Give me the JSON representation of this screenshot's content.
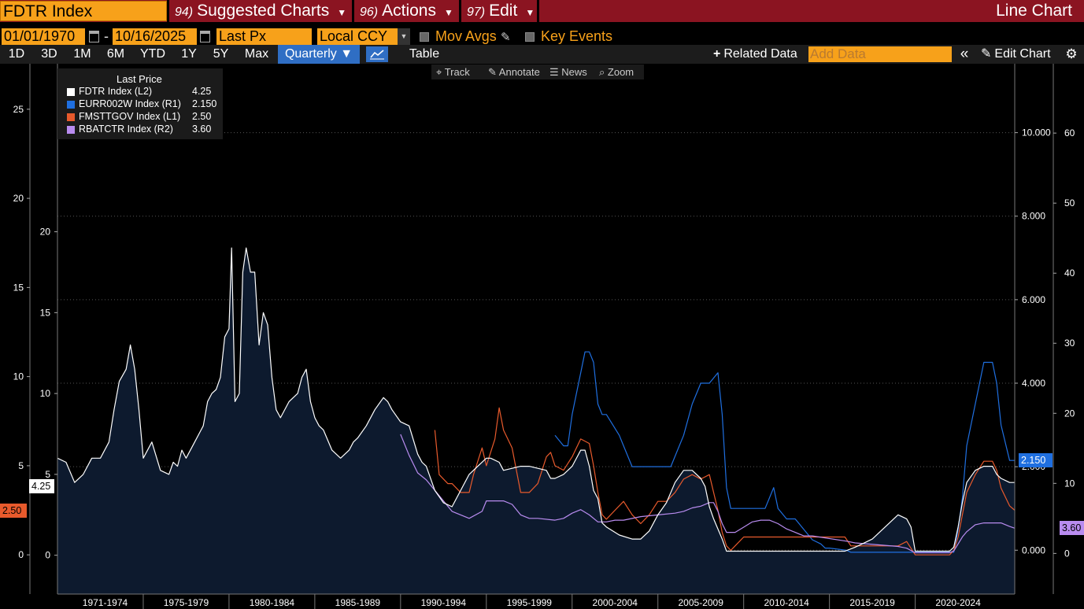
{
  "toolbar": {
    "ticker": "FDTR Index",
    "menus": [
      {
        "num": "94)",
        "label": "Suggested Charts"
      },
      {
        "num": "96)",
        "label": "Actions"
      },
      {
        "num": "97)",
        "label": "Edit"
      }
    ],
    "window_title": "Line Chart"
  },
  "settings": {
    "start_date": "01/01/1970",
    "end_date": "10/16/2025",
    "date_separator": "-",
    "price_field": "Last Px",
    "currency": "Local CCY",
    "mov_avgs": "Mov Avgs",
    "key_events": "Key Events"
  },
  "timeframes": {
    "items": [
      "1D",
      "3D",
      "1M",
      "6M",
      "YTD",
      "1Y",
      "5Y",
      "Max"
    ],
    "periodicity": "Quarterly",
    "table": "Table",
    "related_data": "Related Data",
    "add_data_placeholder": "Add Data",
    "edit_chart": "Edit Chart"
  },
  "chart_tools": [
    "Track",
    "Annotate",
    "News",
    "Zoom"
  ],
  "colors": {
    "fdtr": "#ffffff",
    "eurr": "#1f6fe0",
    "fmst": "#e85a2c",
    "rbat": "#b98cf0",
    "fill": "#0d1a2e"
  },
  "chart_data": {
    "type": "line",
    "legend_title": "Last Price",
    "legend_position": "top-left",
    "grid": "dotted horizontal",
    "x_categories": [
      "1971-1974",
      "1975-1979",
      "1980-1984",
      "1985-1989",
      "1990-1994",
      "1995-1999",
      "2000-2004",
      "2005-2009",
      "2010-2014",
      "2015-2019",
      "2020-2024"
    ],
    "xlim": [
      1970.0,
      2025.8
    ],
    "axes": {
      "L1": {
        "ylim": [
          -2.2,
          27.2
        ],
        "ticks": [
          0,
          5,
          10,
          15,
          20,
          25
        ]
      },
      "L2": {
        "ylim": [
          -2.4,
          30.0
        ],
        "ticks": [
          0,
          5,
          10,
          15,
          20
        ]
      },
      "R1": {
        "ylim": [
          -1.05,
          11.5
        ],
        "ticks": [
          0.0,
          2.0,
          4.0,
          6.0,
          8.0,
          10.0
        ],
        "tick_labels": [
          "0.000",
          "2.000",
          "4.000",
          "6.000",
          "8.000",
          "10.000"
        ]
      },
      "R2": {
        "ylim": [
          -5.8,
          69
        ],
        "ticks": [
          0,
          10,
          20,
          30,
          40,
          50,
          60
        ]
      }
    },
    "series": [
      {
        "name": "FDTR Index",
        "axis": "L2",
        "last": "4.25",
        "filled": true,
        "x": [
          1970.0,
          1970.5,
          1971.0,
          1971.5,
          1972.0,
          1972.5,
          1973.0,
          1973.3,
          1973.6,
          1974.0,
          1974.25,
          1974.5,
          1974.75,
          1975.0,
          1975.5,
          1976.0,
          1976.5,
          1976.75,
          1977.0,
          1977.25,
          1977.5,
          1978.0,
          1978.5,
          1978.75,
          1979.0,
          1979.25,
          1979.5,
          1979.75,
          1980.0,
          1980.15,
          1980.35,
          1980.6,
          1980.8,
          1981.0,
          1981.25,
          1981.5,
          1981.75,
          1982.0,
          1982.25,
          1982.5,
          1982.75,
          1983.0,
          1983.5,
          1984.0,
          1984.25,
          1984.5,
          1984.75,
          1985.0,
          1985.25,
          1985.5,
          1986.0,
          1986.5,
          1987.0,
          1987.25,
          1987.5,
          1988.0,
          1988.5,
          1989.0,
          1989.25,
          1989.5,
          1990.0,
          1990.5,
          1991.0,
          1991.25,
          1991.5,
          1992.0,
          1992.5,
          1993.0,
          1994.0,
          1994.5,
          1995.0,
          1995.25,
          1995.75,
          1996.0,
          1997.0,
          1997.5,
          1998.5,
          1998.75,
          1999.0,
          1999.5,
          2000.0,
          2000.5,
          2000.75,
          2001.0,
          2001.25,
          2001.5,
          2001.75,
          2002.0,
          2002.75,
          2003.5,
          2004.0,
          2004.5,
          2005.0,
          2005.5,
          2006.0,
          2006.5,
          2007.0,
          2007.5,
          2007.75,
          2008.0,
          2008.25,
          2008.75,
          2009.0,
          2015.9,
          2016.5,
          2017.0,
          2017.5,
          2018.0,
          2018.5,
          2019.0,
          2019.5,
          2019.75,
          2020.0,
          2020.2,
          2022.0,
          2022.25,
          2022.5,
          2022.75,
          2023.0,
          2023.5,
          2024.0,
          2024.5,
          2024.75,
          2025.0,
          2025.5,
          2025.8
        ],
        "y": [
          6.0,
          5.75,
          4.5,
          5.0,
          6.0,
          6.0,
          7.0,
          9.0,
          10.75,
          11.5,
          13.0,
          11.5,
          9.0,
          6.0,
          7.0,
          5.25,
          5.0,
          5.75,
          5.5,
          6.5,
          6.0,
          7.0,
          8.0,
          9.5,
          10.0,
          10.25,
          11.0,
          13.5,
          14.0,
          19.0,
          9.5,
          10.0,
          17.5,
          19.0,
          17.5,
          17.5,
          13.0,
          15.0,
          14.25,
          11.0,
          9.0,
          8.5,
          9.5,
          10.0,
          11.0,
          11.5,
          9.5,
          8.5,
          8.0,
          7.75,
          6.5,
          6.0,
          6.5,
          7.0,
          7.25,
          8.0,
          9.0,
          9.75,
          9.5,
          9.0,
          8.25,
          8.0,
          6.25,
          5.75,
          5.5,
          4.0,
          3.25,
          3.0,
          5.0,
          5.5,
          6.0,
          6.0,
          5.75,
          5.25,
          5.5,
          5.5,
          5.25,
          4.75,
          4.75,
          5.0,
          5.5,
          6.5,
          6.5,
          5.5,
          4.0,
          3.5,
          2.0,
          1.75,
          1.25,
          1.0,
          1.0,
          1.5,
          2.5,
          3.25,
          4.5,
          5.25,
          5.25,
          4.75,
          4.25,
          3.0,
          2.25,
          1.0,
          0.25,
          0.25,
          0.5,
          0.75,
          1.0,
          1.5,
          2.0,
          2.5,
          2.25,
          1.75,
          0.25,
          0.25,
          0.25,
          0.5,
          1.75,
          3.25,
          4.5,
          5.25,
          5.5,
          5.5,
          5.0,
          4.75,
          4.5,
          4.5
        ],
        "tag_color": "#ffffff"
      },
      {
        "name": "EURR002W Index",
        "axis": "R1",
        "last": "2.150",
        "x": [
          1999.0,
          1999.5,
          1999.75,
          2000.0,
          2000.25,
          2000.5,
          2000.75,
          2001.0,
          2001.25,
          2001.5,
          2001.75,
          2002.0,
          2002.75,
          2003.0,
          2003.5,
          2005.75,
          2006.0,
          2006.5,
          2007.0,
          2007.5,
          2008.0,
          2008.5,
          2008.75,
          2009.0,
          2009.25,
          2011.25,
          2011.5,
          2011.75,
          2012.0,
          2012.5,
          2013.0,
          2013.5,
          2014.0,
          2014.5,
          2014.75,
          2015.0,
          2016.0,
          2016.25,
          2022.25,
          2022.5,
          2022.75,
          2023.0,
          2023.5,
          2024.0,
          2024.5,
          2024.75,
          2025.0,
          2025.5,
          2025.8
        ],
        "y": [
          2.75,
          2.5,
          2.5,
          3.25,
          3.75,
          4.25,
          4.75,
          4.75,
          4.5,
          3.5,
          3.25,
          3.25,
          2.75,
          2.5,
          2.0,
          2.0,
          2.25,
          2.75,
          3.5,
          4.0,
          4.0,
          4.25,
          3.25,
          1.5,
          1.0,
          1.0,
          1.25,
          1.5,
          1.0,
          0.75,
          0.75,
          0.5,
          0.25,
          0.15,
          0.05,
          0.05,
          0.0,
          -0.05,
          -0.05,
          0.5,
          1.25,
          2.5,
          3.5,
          4.5,
          4.5,
          4.0,
          3.0,
          2.15,
          2.15
        ],
        "tag_color": "#1f6fe0"
      },
      {
        "name": "FMSTTGOV Index",
        "axis": "L1",
        "last": "2.50",
        "x": [
          1992.0,
          1992.25,
          1992.75,
          1993.0,
          1993.5,
          1994.0,
          1994.25,
          1994.75,
          1995.0,
          1995.5,
          1995.75,
          1996.0,
          1996.5,
          1997.0,
          1997.5,
          1998.0,
          1998.5,
          1998.75,
          1999.0,
          1999.5,
          2000.0,
          2000.5,
          2001.0,
          2001.25,
          2001.5,
          2001.75,
          2002.0,
          2002.5,
          2003.0,
          2003.5,
          2004.0,
          2004.5,
          2005.0,
          2005.5,
          2006.0,
          2006.5,
          2007.0,
          2007.5,
          2008.0,
          2008.25,
          2008.5,
          2008.75,
          2009.0,
          2009.25,
          2009.5,
          2010.0,
          2010.5,
          2015.9,
          2016.25,
          2019.0,
          2019.5,
          2020.0,
          2022.0,
          2022.25,
          2022.5,
          2022.75,
          2023.0,
          2023.5,
          2024.0,
          2024.5,
          2024.75,
          2025.0,
          2025.5,
          2025.8
        ],
        "y": [
          7.0,
          4.5,
          4.0,
          4.0,
          3.5,
          3.5,
          4.5,
          6.0,
          5.0,
          6.5,
          8.25,
          7.0,
          6.0,
          3.5,
          3.5,
          4.0,
          5.5,
          5.75,
          5.0,
          4.75,
          5.5,
          6.5,
          6.25,
          5.0,
          3.5,
          2.25,
          2.0,
          2.5,
          3.0,
          2.25,
          1.75,
          2.25,
          3.0,
          3.0,
          3.5,
          4.25,
          4.5,
          4.25,
          4.5,
          3.5,
          2.5,
          1.25,
          0.5,
          0.25,
          0.5,
          1.0,
          1.0,
          1.0,
          0.5,
          0.5,
          0.75,
          0.0,
          0.0,
          0.25,
          1.0,
          2.25,
          3.5,
          4.5,
          5.25,
          5.25,
          4.75,
          3.75,
          2.75,
          2.5
        ],
        "tag_color": "#e85a2c"
      },
      {
        "name": "RBATCTR Index",
        "axis": "R2",
        "last": "3.60",
        "x": [
          1990.0,
          1990.5,
          1991.0,
          1991.5,
          1992.0,
          1992.5,
          1993.0,
          1994.0,
          1994.75,
          1995.0,
          1996.0,
          1996.5,
          1997.0,
          1997.5,
          1998.0,
          1999.0,
          1999.5,
          2000.0,
          2000.5,
          2001.0,
          2001.5,
          2002.0,
          2002.5,
          2003.0,
          2004.0,
          2005.0,
          2006.0,
          2006.5,
          2007.0,
          2007.5,
          2008.0,
          2008.25,
          2008.5,
          2008.75,
          2009.0,
          2009.5,
          2010.0,
          2010.5,
          2011.0,
          2011.5,
          2012.0,
          2012.5,
          2013.0,
          2013.5,
          2014.0,
          2016.0,
          2016.5,
          2019.0,
          2019.5,
          2020.0,
          2022.0,
          2022.25,
          2022.5,
          2022.75,
          2023.0,
          2023.5,
          2024.0,
          2025.0,
          2025.5,
          2025.8
        ],
        "y": [
          17.0,
          14.0,
          11.5,
          10.5,
          9.0,
          7.5,
          6.0,
          5.0,
          6.0,
          7.5,
          7.5,
          7.0,
          5.5,
          5.0,
          5.0,
          4.75,
          5.0,
          5.75,
          6.25,
          5.5,
          4.5,
          4.5,
          4.75,
          4.75,
          5.25,
          5.5,
          5.75,
          6.0,
          6.5,
          6.75,
          7.25,
          7.25,
          6.0,
          4.25,
          3.0,
          3.0,
          3.75,
          4.5,
          4.75,
          4.75,
          4.25,
          3.5,
          3.0,
          2.5,
          2.5,
          1.75,
          1.5,
          1.0,
          0.75,
          0.1,
          0.1,
          0.35,
          1.35,
          2.35,
          3.1,
          4.1,
          4.35,
          4.35,
          3.85,
          3.6
        ],
        "tag_color": "#b98cf0"
      }
    ]
  }
}
